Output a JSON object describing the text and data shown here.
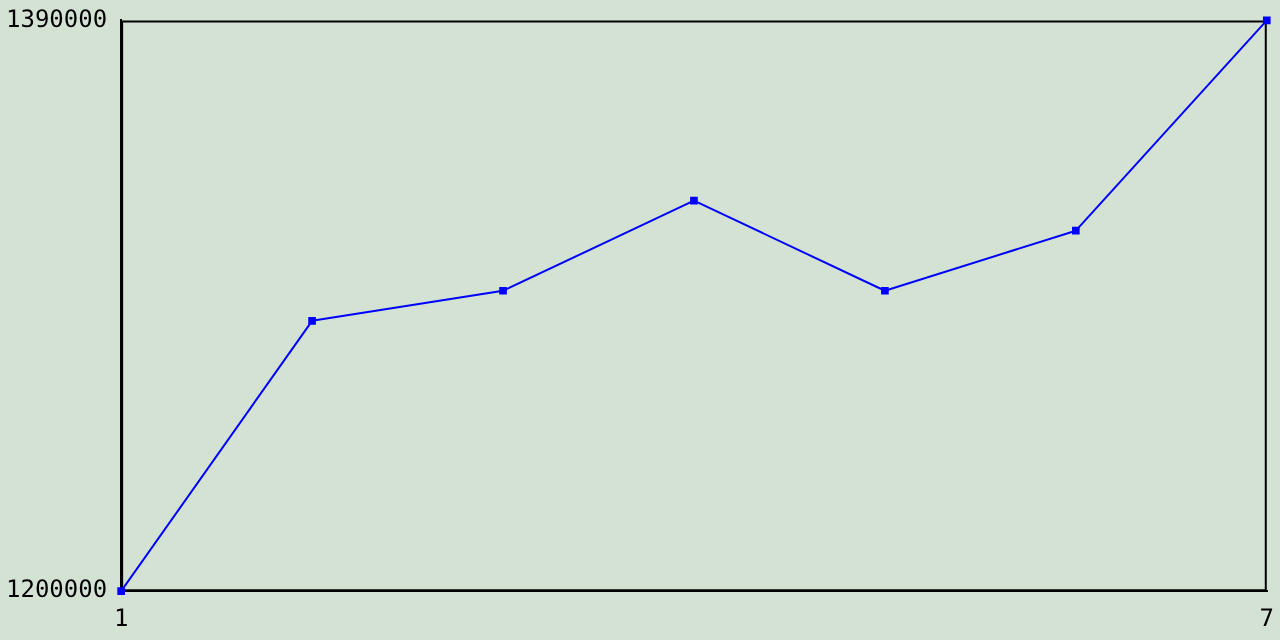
{
  "chart_data": {
    "type": "line",
    "x": [
      1,
      2,
      3,
      4,
      5,
      6,
      7
    ],
    "series": [
      {
        "color": "#0000ff",
        "values": [
          1200000,
          1290000,
          1300000,
          1330000,
          1300000,
          1320000,
          1390000
        ]
      }
    ],
    "xlim": [
      1,
      7
    ],
    "xticks": [
      1,
      7
    ],
    "ylim": [
      1200000,
      1390000
    ],
    "yticks": [
      1200000,
      1390000
    ],
    "grid": false,
    "legend": false,
    "marker": "square",
    "line_style": "solid"
  }
}
